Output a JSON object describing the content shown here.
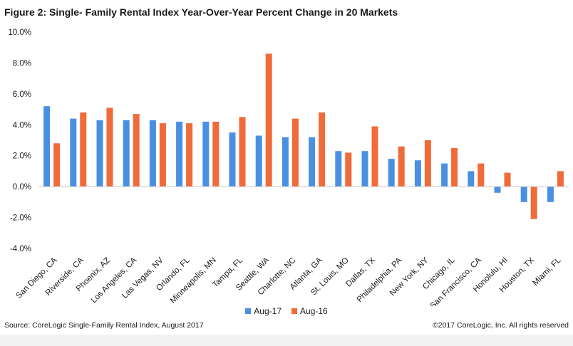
{
  "title": "Figure 2:  Single- Family  Rental Index Year-Over-Year Percent Change in 20 Markets",
  "source": "Source: CoreLogic Single-Family  Rental Index, August 2017",
  "copyright": "©2017 CoreLogic, Inc. All rights reserved",
  "colors": {
    "aug17": "#4a90e2",
    "aug16": "#f06a3a",
    "axis": "#c8c8c8"
  },
  "chart_data": {
    "type": "bar",
    "title": "Figure 2:  Single- Family  Rental Index Year-Over-Year Percent Change in 20 Markets",
    "xlabel": "",
    "ylabel": "",
    "ylim": [
      -4.0,
      10.0
    ],
    "yticks": [
      "10.0%",
      "8.0%",
      "6.0%",
      "4.0%",
      "2.0%",
      "0.0%",
      "-2.0%",
      "-4.0%"
    ],
    "ytick_values": [
      10,
      8,
      6,
      4,
      2,
      0,
      -2,
      -4
    ],
    "grid": false,
    "legend_position": "bottom",
    "categories": [
      "San Diego, CA",
      "Riverside, CA",
      "Phoenix, AZ",
      "Los Angeles, CA",
      "Las Vegas, NV",
      "Orlando, FL",
      "Minneapolis, MN",
      "Tampa, FL",
      "Seattle, WA",
      "Charlotte, NC",
      "Atlanta, GA",
      "St. Louis, MO",
      "Dallas, TX",
      "Philadelphia, PA",
      "New York, NY",
      "Chicago, IL",
      "San Francisco, CA",
      "Honolulu, HI",
      "Houston, TX",
      "Miami, FL"
    ],
    "series": [
      {
        "name": "Aug-17",
        "values": [
          5.2,
          4.4,
          4.3,
          4.3,
          4.3,
          4.2,
          4.2,
          3.5,
          3.3,
          3.2,
          3.2,
          2.3,
          2.3,
          1.8,
          1.7,
          1.5,
          1.0,
          -0.4,
          -1.0,
          -1.0
        ]
      },
      {
        "name": "Aug-16",
        "values": [
          2.8,
          4.8,
          5.1,
          4.7,
          4.1,
          4.1,
          4.2,
          4.5,
          8.6,
          4.4,
          4.8,
          2.2,
          3.9,
          2.6,
          3.0,
          2.5,
          1.5,
          0.9,
          -2.1,
          1.0
        ]
      }
    ]
  }
}
